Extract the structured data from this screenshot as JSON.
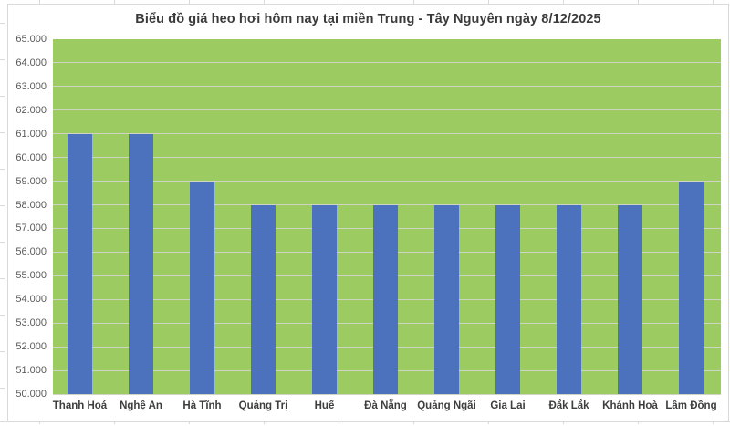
{
  "chart_data": {
    "type": "bar",
    "title": "Biểu đồ giá heo hơi hôm nay tại miền Trung - Tây Nguyên ngày 8/12/2025",
    "categories": [
      "Thanh Hoá",
      "Nghệ An",
      "Hà Tĩnh",
      "Quảng Trị",
      "Huế",
      "Đà Nẵng",
      "Quảng Ngãi",
      "Gia Lai",
      "Đắk Lắk",
      "Khánh Hoà",
      "Lâm Đồng"
    ],
    "values": [
      61000,
      61000,
      59000,
      58000,
      58000,
      58000,
      58000,
      58000,
      58000,
      58000,
      59000
    ],
    "xlabel": "",
    "ylabel": "",
    "ylim": [
      50000,
      65000
    ],
    "ytick_step": 1000,
    "yticks": [
      {
        "value": 65000,
        "label": "65.000"
      },
      {
        "value": 64000,
        "label": "64.000"
      },
      {
        "value": 63000,
        "label": "63.000"
      },
      {
        "value": 62000,
        "label": "62.000"
      },
      {
        "value": 61000,
        "label": "61.000"
      },
      {
        "value": 60000,
        "label": "60.000"
      },
      {
        "value": 59000,
        "label": "59.000"
      },
      {
        "value": 58000,
        "label": "58.000"
      },
      {
        "value": 57000,
        "label": "57.000"
      },
      {
        "value": 56000,
        "label": "56.000"
      },
      {
        "value": 55000,
        "label": "55.000"
      },
      {
        "value": 54000,
        "label": "54.000"
      },
      {
        "value": 53000,
        "label": "53.000"
      },
      {
        "value": 52000,
        "label": "52.000"
      },
      {
        "value": 51000,
        "label": "51.000"
      },
      {
        "value": 50000,
        "label": "50.000"
      }
    ],
    "grid": true,
    "legend_position": "none",
    "colors": {
      "bar": "#4d72bd",
      "plot_background": "#9ccb62",
      "gridline": "#cfd5c3",
      "title_text": "#3b3b3b",
      "ytick_text": "#595959",
      "xtick_text": "#3e3e3e",
      "chart_border": "#d9d9d9"
    }
  }
}
